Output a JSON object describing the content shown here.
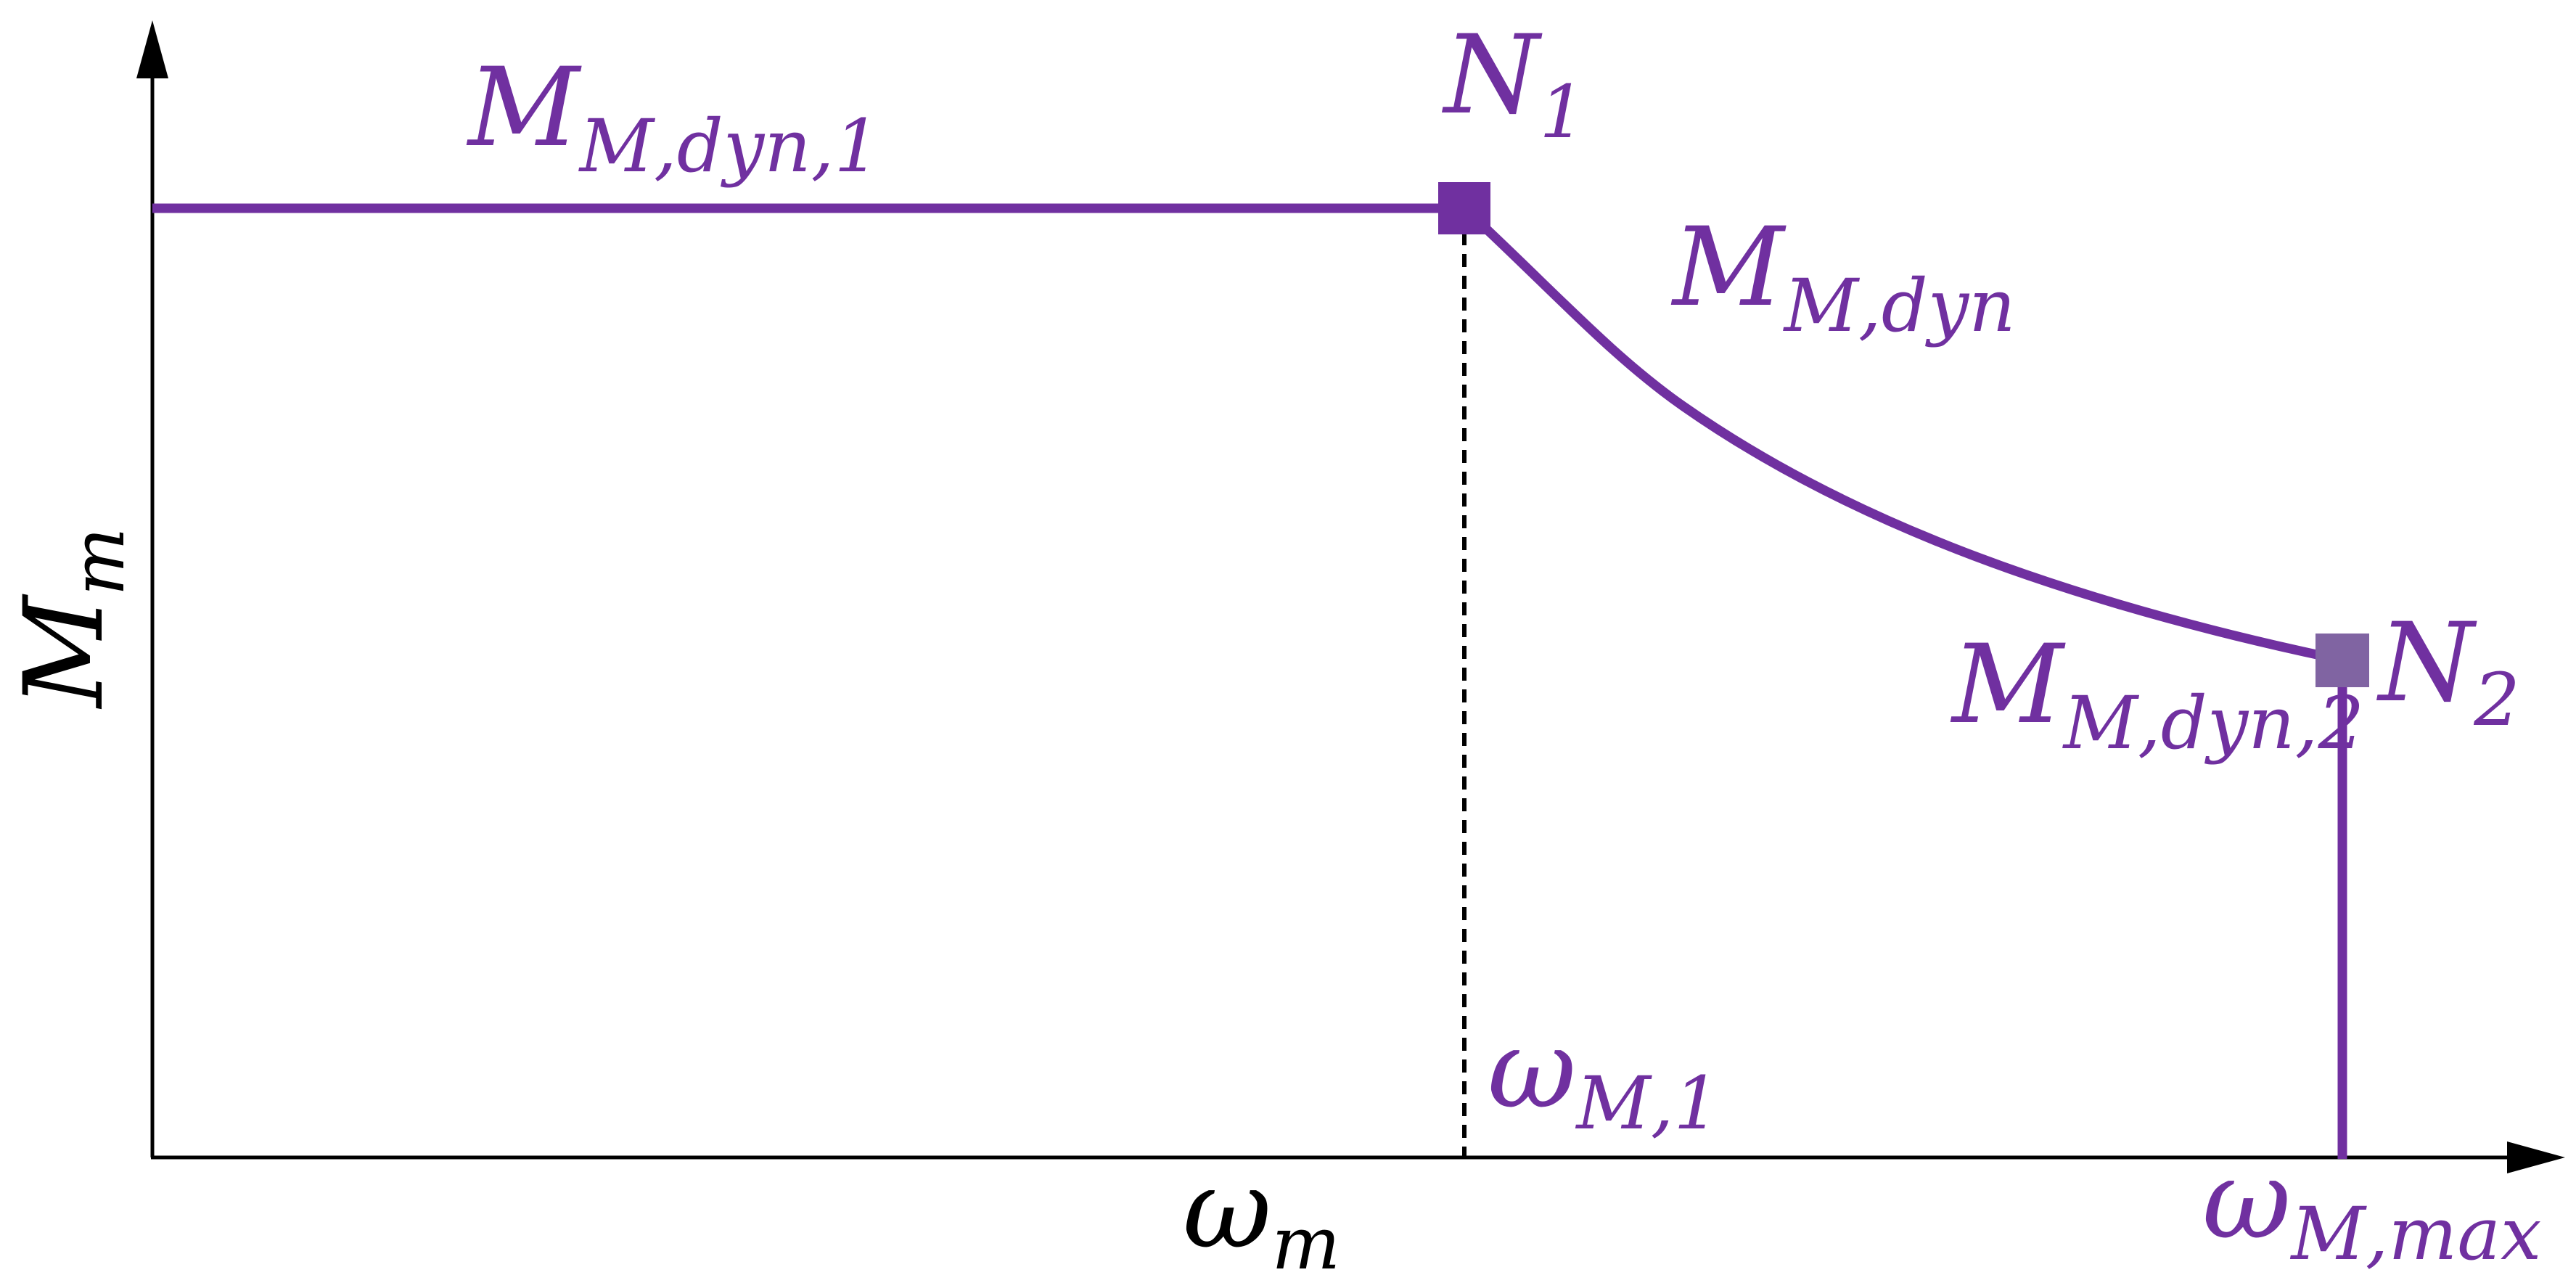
{
  "colors": {
    "curve": "#7030a0",
    "point_n1": "#7030a0",
    "point_n2": "#8064a2",
    "axes": "#000000",
    "dashed": "#000000"
  },
  "axes": {
    "y_label": {
      "main": "M",
      "sub": "m"
    },
    "x_label": {
      "main": "ω",
      "sub": "m"
    }
  },
  "points": {
    "n1": {
      "main": "N",
      "sub": "1"
    },
    "n2": {
      "main": "N",
      "sub": "2"
    }
  },
  "curve_labels": {
    "constant": {
      "main": "M",
      "sub": "M,dyn,1"
    },
    "falling": {
      "main": "M",
      "sub": "M,dyn"
    },
    "end": {
      "main": "M",
      "sub": "M,dyn,2"
    }
  },
  "x_markers": {
    "knee": {
      "main": "ω",
      "sub": "M,1"
    },
    "max": {
      "main": "ω",
      "sub": "M,max"
    }
  }
}
